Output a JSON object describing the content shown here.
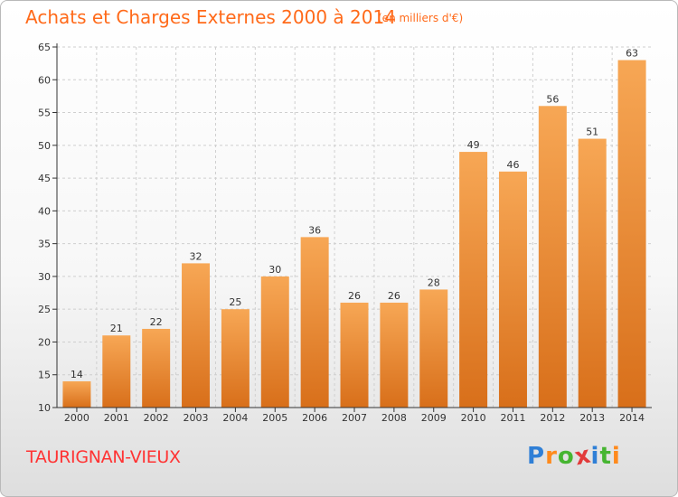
{
  "title": "Achats et Charges Externes 2000 à 2014",
  "subtitle": "(en milliers d'€)",
  "commune": "TAURIGNAN-VIEUX",
  "logo": {
    "letters": [
      "P",
      "r",
      "o",
      "x",
      "i",
      "t",
      "i"
    ],
    "colors": [
      "#2f7fd6",
      "#ff8a1c",
      "#46b531",
      "#e23a3a",
      "#2f7fd6",
      "#46b531",
      "#ff8a1c"
    ]
  },
  "colors": {
    "bar_top": "#f7a755",
    "bar_bottom": "#d86f1a",
    "grid": "#cfcfcf",
    "axis": "#333333",
    "accent": "#ff6a1a"
  },
  "chart_data": {
    "type": "bar",
    "title": "Achats et Charges Externes 2000 à 2014",
    "subtitle": "(en milliers d'€)",
    "categories": [
      "2000",
      "2001",
      "2002",
      "2003",
      "2004",
      "2005",
      "2006",
      "2007",
      "2008",
      "2009",
      "2010",
      "2011",
      "2012",
      "2013",
      "2014"
    ],
    "values": [
      14,
      21,
      22,
      32,
      25,
      30,
      36,
      26,
      26,
      28,
      49,
      46,
      56,
      51,
      63
    ],
    "ylim": [
      10,
      65
    ],
    "yticks": [
      10,
      15,
      20,
      25,
      30,
      35,
      40,
      45,
      50,
      55,
      60,
      65
    ],
    "grid": true,
    "legend": "none"
  }
}
